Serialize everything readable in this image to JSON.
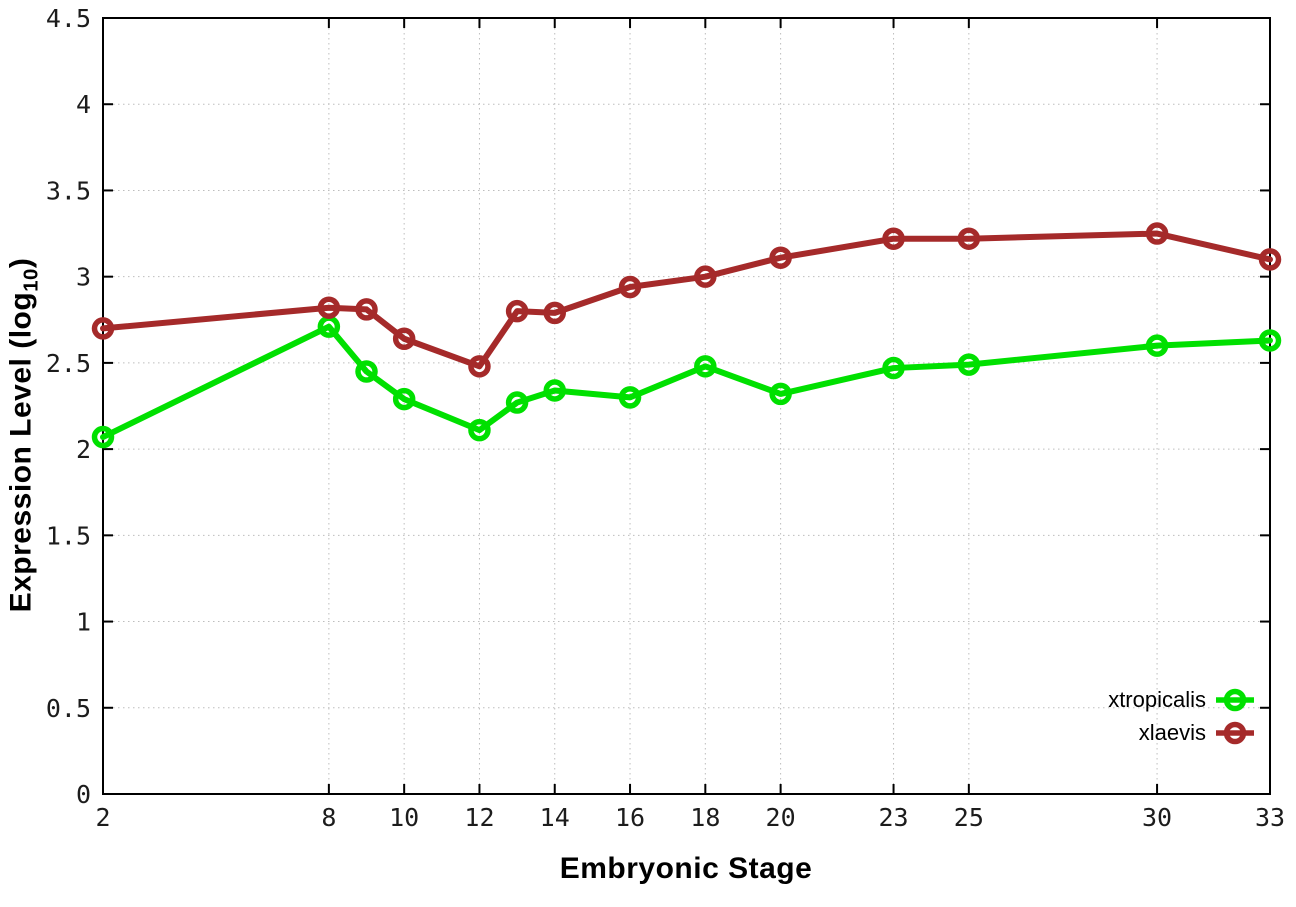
{
  "figure": {
    "x_axis_title": "Embryonic Stage",
    "y_axis_title_prefix": "Expression Level (log",
    "y_axis_title_sub": "10",
    "y_axis_title_suffix": ")"
  },
  "chart_data": {
    "type": "line",
    "title": "",
    "xlabel": "Embryonic Stage",
    "ylabel": "Expression Level (log10)",
    "x": [
      2,
      8,
      9,
      10,
      12,
      13,
      14,
      16,
      18,
      20,
      23,
      25,
      30,
      33
    ],
    "series": [
      {
        "name": "xtropicalis",
        "color": "#00e000",
        "values": [
          2.07,
          2.71,
          2.45,
          2.29,
          2.11,
          2.27,
          2.34,
          2.3,
          2.48,
          2.32,
          2.47,
          2.49,
          2.6,
          2.63
        ]
      },
      {
        "name": "xlaevis",
        "color": "#a52a2a",
        "values": [
          2.7,
          2.82,
          2.81,
          2.64,
          2.48,
          2.8,
          2.79,
          2.94,
          3.0,
          3.11,
          3.22,
          3.22,
          3.25,
          3.1
        ]
      }
    ],
    "xlim": [
      2,
      33
    ],
    "ylim": [
      0,
      4.5
    ],
    "x_ticks": {
      "values": [
        2,
        8,
        10,
        12,
        14,
        16,
        18,
        20,
        23,
        25,
        30,
        33
      ],
      "labels": [
        "2",
        "8",
        "10",
        "12",
        "14",
        "16",
        "18",
        "20",
        "23",
        "25",
        "30",
        "33"
      ]
    },
    "y_ticks": {
      "values": [
        0,
        0.5,
        1,
        1.5,
        2,
        2.5,
        3,
        3.5,
        4,
        4.5
      ],
      "labels": [
        "0",
        "0.5",
        "1",
        "1.5",
        "2",
        "2.5",
        "3",
        "3.5",
        "4",
        "4.5"
      ]
    },
    "grid": true,
    "marker": "open-circle",
    "legend_position": "bottom-right",
    "colors": {
      "axis": "#000000",
      "grid": "#bdbdbd",
      "tick_text": "#1c1c1c"
    }
  }
}
